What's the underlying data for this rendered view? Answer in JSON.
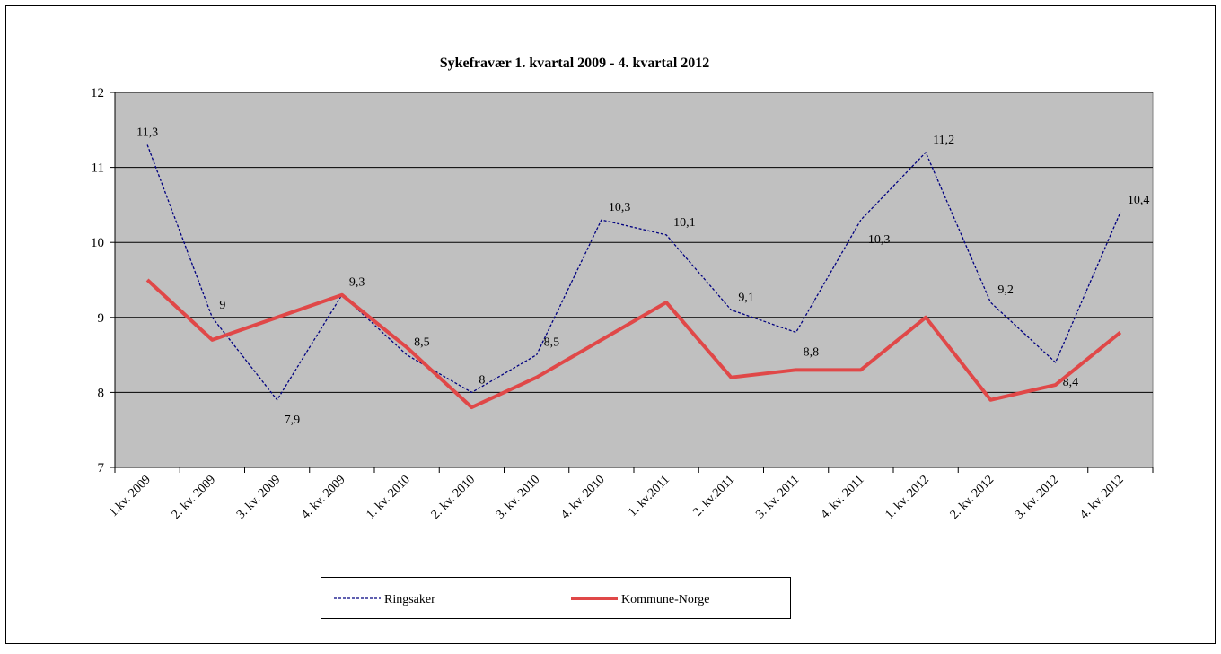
{
  "chart_data": {
    "type": "line",
    "title": "Sykefravær 1. kvartal 2009 - 4. kvartal 2012",
    "categories": [
      "1.kv. 2009",
      "2. kv. 2009",
      "3. kv. 2009",
      "4. kv. 2009",
      "1. kv. 2010",
      "2. kv. 2010",
      "3. kv. 2010",
      "4. kv. 2010",
      "1. kv.2011",
      "2. kv.2011",
      "3. kv. 2011",
      "4. kv. 2011",
      "1. kv. 2012",
      "2. kv. 2012",
      "3. kv. 2012",
      "4. kv. 2012"
    ],
    "series": [
      {
        "name": "Ringsaker",
        "color": "#000080",
        "dashed": true,
        "values": [
          11.3,
          9,
          7.9,
          9.3,
          8.5,
          8,
          8.5,
          10.3,
          10.1,
          9.1,
          8.8,
          10.3,
          11.2,
          9.2,
          8.4,
          10.4
        ],
        "value_labels": [
          "11,3",
          "9",
          "7,9",
          "9,3",
          "8,5",
          "8",
          "8,5",
          "10,3",
          "10,1",
          "9,1",
          "8,8",
          "10,3",
          "11,2",
          "9,2",
          "8,4",
          "10,4"
        ]
      },
      {
        "name": "Kommune-Norge",
        "color": "#e04848",
        "dashed": false,
        "values": [
          9.5,
          8.7,
          9.0,
          9.3,
          8.6,
          7.8,
          8.2,
          8.7,
          9.2,
          8.2,
          8.3,
          8.3,
          9.0,
          7.9,
          8.1,
          8.8
        ]
      }
    ],
    "ylim": [
      7,
      12
    ],
    "yticks": [
      7,
      8,
      9,
      10,
      11,
      12
    ],
    "grid": true,
    "legend": "bottom"
  }
}
